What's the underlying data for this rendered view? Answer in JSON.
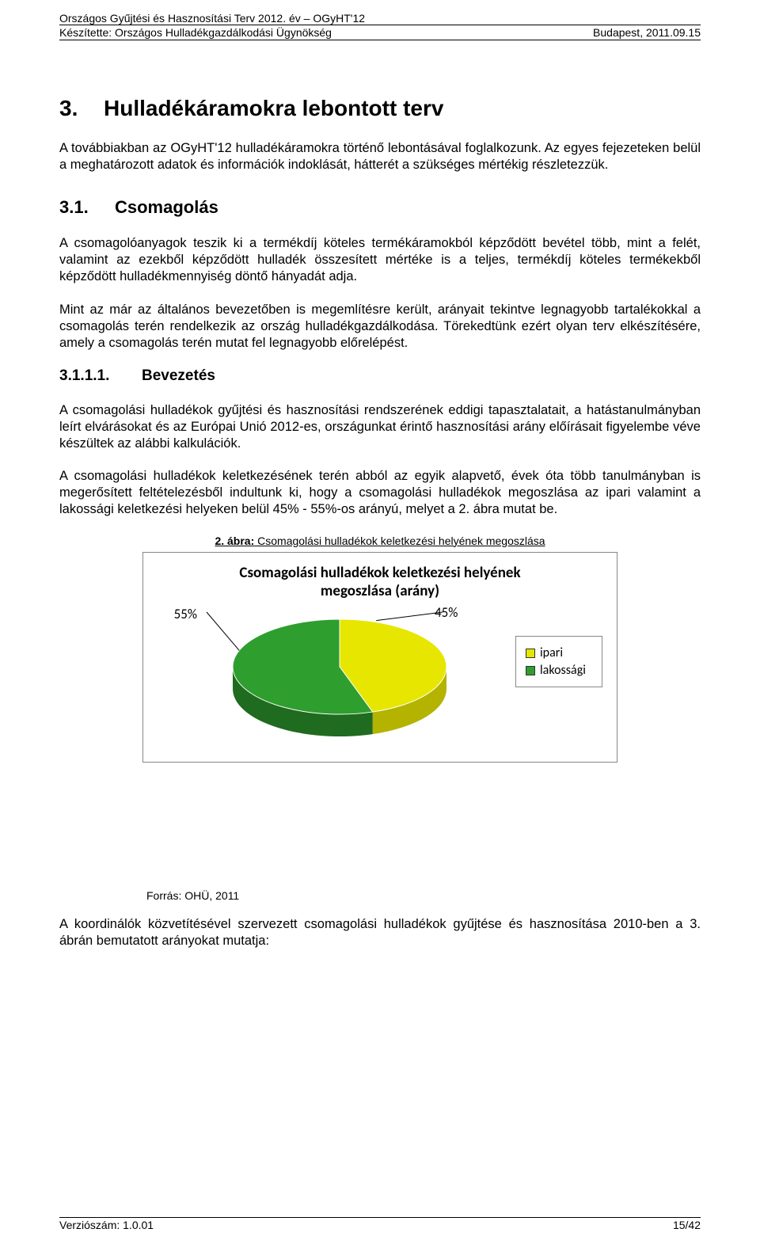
{
  "header": {
    "title_line": "Országos Gyűjtési és Hasznosítási Terv 2012. év – OGyHT'12",
    "author_line": "Készítette: Országos Hulladékgazdálkodási Ügynökség",
    "place_date": "Budapest, 2011.09.15"
  },
  "section3": {
    "number": "3.",
    "title": "Hulladékáramokra lebontott terv",
    "p1": "A továbbiakban az OGyHT'12 hulladékáramokra történő lebontásával foglalkozunk. Az egyes fejezeteken belül a meghatározott adatok és információk indoklását, hátterét a szükséges mértékig részletezzük."
  },
  "section31": {
    "number": "3.1.",
    "title": "Csomagolás",
    "p1": "A csomagolóanyagok teszik ki a termékdíj köteles termékáramokból képződött bevétel több, mint a felét, valamint az ezekből képződött hulladék összesített mértéke is a teljes, termékdíj köteles termékekből képződött hulladékmennyiség döntő hányadát adja.",
    "p2": "Mint az már az általános bevezetőben is megemlítésre került, arányait tekintve legnagyobb tartalékokkal a csomagolás terén rendelkezik az ország hulladékgazdálkodása. Törekedtünk ezért olyan terv elkészítésére, amely a csomagolás terén mutat fel legnagyobb előrelépést."
  },
  "section3111": {
    "number": "3.1.1.1.",
    "title": "Bevezetés",
    "p1": "A csomagolási hulladékok gyűjtési és hasznosítási rendszerének eddigi tapasztalatait, a hatástanulmányban leírt elvárásokat és az Európai Unió 2012-es, országunkat érintő hasznosítási arány előírásait figyelembe véve készültek az alábbi kalkulációk.",
    "p2": "A csomagolási hulladékok keletkezésének terén abból az egyik alapvető, évek óta több tanulmányban is megerősített feltételezésből indultunk ki, hogy a csomagolási hulladékok megoszlása az ipari valamint a lakossági keletkezési helyeken belül 45% - 55%-os arányú, melyet a 2. ábra mutat be."
  },
  "figure2": {
    "caption_bold": "2. ábra:",
    "caption_rest": " Csomagolási hulladékok keletkezési helyének megoszlása",
    "chart": {
      "type": "pie",
      "title_line1": "Csomagolási hulladékok keletkezési helyének",
      "title_line2": "megoszlása (arány)",
      "slices": [
        {
          "label": "ipari",
          "value": 45,
          "pct_label": "45%",
          "color": "#e6e600",
          "side_color": "#b3b300"
        },
        {
          "label": "lakossági",
          "value": 55,
          "pct_label": "55%",
          "color": "#2e9e2e",
          "side_color": "#1f6b1f"
        }
      ],
      "left_outside_label": "55%",
      "right_outside_label": "45%",
      "background_color": "#ffffff",
      "border_color": "#888888",
      "title_fontsize": 19,
      "label_fontsize": 17,
      "legend_fontsize": 16
    },
    "source": "Forrás: OHÜ, 2011"
  },
  "closing_p": "A koordinálók közvetítésével szervezett csomagolási hulladékok gyűjtése és hasznosítása 2010-ben a 3. ábrán bemutatott arányokat mutatja:",
  "footer": {
    "version": "Verziószám: 1.0.01",
    "page": "15/42"
  }
}
